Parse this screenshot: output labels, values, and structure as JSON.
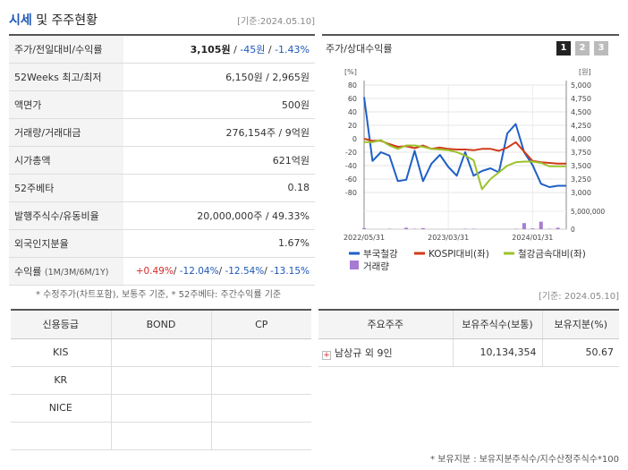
{
  "header": {
    "title_main": "시세",
    "title_rest": " 및 주주현황",
    "date": "[기준:2024.05.10]"
  },
  "info": {
    "price_label": "주가/전일대비/수익률",
    "price": "3,105원",
    "sep1": " / ",
    "change": "-45원",
    "sep2": " / ",
    "change_pct": "-1.43%",
    "w52_label": "52Weeks 최고/최저",
    "w52_value": "6,150원 / 2,965원",
    "par_label": "액면가",
    "par_value": "500원",
    "volume_label": "거래량/거래대금",
    "volume_value": "276,154주 / 9억원",
    "mcap_label": "시가총액",
    "mcap_value": "621억원",
    "beta_label": "52주베타",
    "beta_value": "0.18",
    "shares_label": "발행주식수/유동비율",
    "shares_value": "20,000,000주 / 49.33%",
    "foreign_label": "외국인지분율",
    "foreign_value": "1.67%",
    "return_label": "수익률",
    "return_period": "(1M/3M/6M/1Y)",
    "ret_1m": "+0.49%",
    "ret_3m": "-12.04%",
    "ret_6m": "-12.54%",
    "ret_1y": "-13.15%",
    "slash": "/ "
  },
  "note1": "* 수정주가(차트포함), 보통주 기준, * 52주베타: 주간수익률 기준",
  "chart": {
    "title": "주가/상대수익률",
    "tabs": [
      "1",
      "2",
      "3"
    ],
    "left_unit": "[%]",
    "right_unit": "[원]",
    "volume_label_max": "5,000,000",
    "volume_label_zero": "0"
  },
  "chart_data": {
    "type": "line",
    "x": [
      "2022/05/31",
      "2022/06/30",
      "2022/07/31",
      "2022/08/31",
      "2022/09/30",
      "2022/10/31",
      "2022/11/30",
      "2022/12/31",
      "2023/01/31",
      "2023/02/28",
      "2023/03/31",
      "2023/04/30",
      "2023/05/31",
      "2023/06/30",
      "2023/07/31",
      "2023/08/31",
      "2023/09/30",
      "2023/10/31",
      "2023/11/30",
      "2023/12/31",
      "2024/01/31",
      "2024/02/29",
      "2024/03/31",
      "2024/04/30",
      "2024/05/10"
    ],
    "x_tick_labels": [
      "2022/05/31",
      "2023/03/31",
      "2024/01/31"
    ],
    "series": [
      {
        "name": "부국철강",
        "axis": "left",
        "color": "#1f5fc8",
        "values": [
          62,
          -33,
          -20,
          -25,
          -63,
          -61,
          -18,
          -63,
          -37,
          -24,
          -42,
          -55,
          -20,
          -55,
          -48,
          -44,
          -50,
          8,
          22,
          -20,
          -39,
          -67,
          -72,
          -70,
          -70
        ]
      },
      {
        "name": "KOSPI대비(좌)",
        "axis": "left",
        "color": "#d03a1a",
        "values": [
          0,
          -3,
          -3,
          -8,
          -12,
          -11,
          -14,
          -10,
          -15,
          -13,
          -15,
          -16,
          -16,
          -17,
          -15,
          -15,
          -18,
          -13,
          -5,
          -19,
          -33,
          -35,
          -36,
          -37,
          -37
        ]
      },
      {
        "name": "철강금속대비(좌)",
        "axis": "left",
        "color": "#9cc22b",
        "values": [
          -5,
          -5,
          -2,
          -10,
          -15,
          -10,
          -10,
          -12,
          -15,
          -16,
          -17,
          -20,
          -25,
          -32,
          -75,
          -60,
          -50,
          -40,
          -35,
          -34,
          -34,
          -36,
          -41,
          -41,
          -41
        ]
      }
    ],
    "volume": {
      "name": "거래량",
      "color": "#a77bd4",
      "values": [
        3,
        0,
        0,
        1,
        0,
        4,
        1,
        3,
        0,
        0,
        0,
        0,
        1,
        1,
        0,
        0,
        0,
        0,
        1,
        17,
        2,
        21,
        1,
        4,
        0
      ],
      "unit_note": "x 100,000"
    },
    "ylim_left": [
      -80,
      80
    ],
    "ylim_right": [
      3000,
      5000
    ],
    "y_ticks_left": [
      "80",
      "60",
      "40",
      "20",
      "0",
      "-20",
      "-40",
      "-60",
      "-80"
    ],
    "y_ticks_right": [
      "5,000",
      "4,750",
      "4,500",
      "4,250",
      "4,000",
      "3,750",
      "3,500",
      "3,250",
      "3,000"
    ],
    "grid": true,
    "legend_position": "bottom"
  },
  "date2": "[기준: 2024.05.10]",
  "credit": {
    "headers": [
      "신용등급",
      "BOND",
      "CP"
    ],
    "rows": [
      [
        "KIS",
        "",
        ""
      ],
      [
        "KR",
        "",
        ""
      ],
      [
        "NICE",
        "",
        ""
      ],
      [
        "",
        "",
        ""
      ]
    ]
  },
  "holders": {
    "headers": [
      "주요주주",
      "보유주식수(보통)",
      "보유지분(%)"
    ],
    "name": "남상규 외 9인",
    "shares": "10,134,354",
    "pct": "50.67"
  },
  "note2": "* 보유지분 : 보유지분주식수/지수산정주식수*100"
}
